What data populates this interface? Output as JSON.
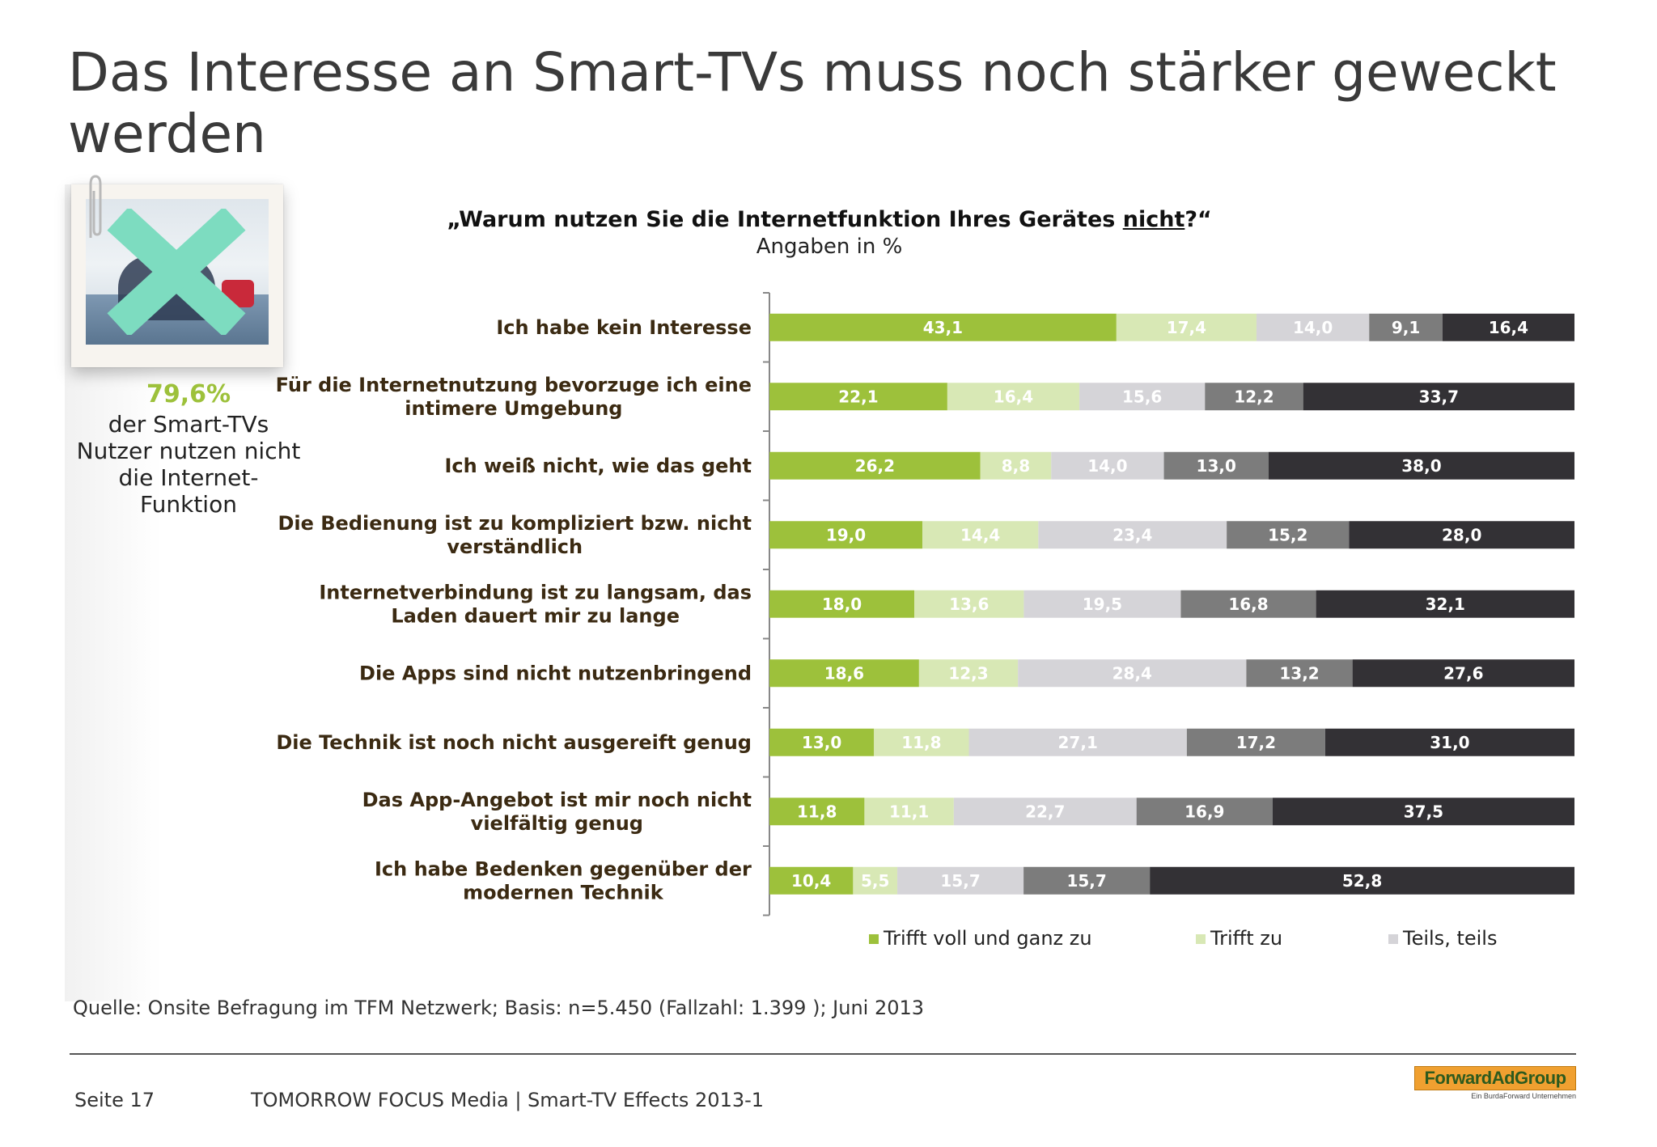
{
  "title": "Das Interesse an Smart-TVs muss noch stärker geweckt werden",
  "callout": {
    "value": "79,6%",
    "text": "der Smart-TVs Nutzer nutzen nicht die Internet-Funktion"
  },
  "chart_data": {
    "type": "bar",
    "orientation": "horizontal",
    "stacked": true,
    "title_parts": [
      "„Warum nutzen Sie die Internetfunktion Ihres Gerätes ",
      "nicht",
      "?“"
    ],
    "subtitle": "Angaben in %",
    "categories": [
      "Ich habe kein Interesse",
      "Für die Internetnutzung bevorzuge ich eine intimere Umgebung",
      "Ich weiß nicht, wie das geht",
      "Die Bedienung ist zu kompliziert bzw. nicht verständlich",
      "Internetverbindung ist zu langsam, das Laden dauert mir zu lange",
      "Die Apps sind nicht nutzenbringend",
      "Die Technik ist noch nicht ausgereift genug",
      "Das App-Angebot ist mir noch nicht vielfältig genug",
      "Ich habe Bedenken gegenüber der modernen Technik"
    ],
    "category_label_lines": [
      [
        "Ich habe kein Interesse"
      ],
      [
        "Für die Internetnutzung bevorzuge ich eine",
        "intimere Umgebung"
      ],
      [
        "Ich weiß nicht, wie das geht"
      ],
      [
        "Die Bedienung ist zu kompliziert bzw. nicht",
        "verständlich"
      ],
      [
        "Internetverbindung ist zu langsam, das",
        "Laden dauert mir zu lange"
      ],
      [
        "Die Apps sind nicht nutzenbringend"
      ],
      [
        "Die Technik ist noch nicht ausgereift genug"
      ],
      [
        "Das App-Angebot ist mir noch nicht",
        "vielfältig genug"
      ],
      [
        "Ich habe Bedenken gegenüber der",
        "modernen Technik"
      ]
    ],
    "series": [
      {
        "name": "Trifft voll und ganz zu",
        "color": "#9dc13b",
        "label_color": "#ffffff",
        "values": [
          43.1,
          22.1,
          26.2,
          19.0,
          18.0,
          18.6,
          13.0,
          11.8,
          10.4
        ],
        "labels": [
          "43,1",
          "22,1",
          "26,2",
          "19,0",
          "18,0",
          "18,6",
          "13,0",
          "11,8",
          "10,4"
        ]
      },
      {
        "name": "Trifft zu",
        "color": "#d8e8b5",
        "label_color": "#ffffff",
        "values": [
          17.4,
          16.4,
          8.8,
          14.4,
          13.6,
          12.3,
          11.8,
          11.1,
          5.5
        ],
        "labels": [
          "17,4",
          "16,4",
          "8,8",
          "14,4",
          "13,6",
          "12,3",
          "11,8",
          "11,1",
          "5,5"
        ]
      },
      {
        "name": "Teils, teils",
        "color": "#d5d4d8",
        "label_color": "#ffffff",
        "values": [
          14.0,
          15.6,
          14.0,
          23.4,
          19.5,
          28.4,
          27.1,
          22.7,
          15.7
        ],
        "labels": [
          "14,0",
          "15,6",
          "14,0",
          "23,4",
          "19,5",
          "28,4",
          "27,1",
          "22,7",
          "15,7"
        ]
      },
      {
        "color": "#7c7c7c",
        "label_color": "#ffffff",
        "values": [
          9.1,
          12.2,
          13.0,
          15.2,
          16.8,
          13.2,
          17.2,
          16.9,
          15.7
        ],
        "labels": [
          "9,1",
          "12,2",
          "13,0",
          "15,2",
          "16,8",
          "13,2",
          "17,2",
          "16,9",
          "15,7"
        ]
      },
      {
        "color": "#333135",
        "label_color": "#ffffff",
        "values": [
          16.4,
          33.7,
          38.0,
          28.0,
          32.1,
          27.6,
          31.0,
          37.5,
          52.8
        ],
        "labels": [
          "16,4",
          "33,7",
          "38,0",
          "28,0",
          "32,1",
          "27,6",
          "31,0",
          "37,5",
          "52,8"
        ]
      }
    ],
    "xlim": [
      0,
      100
    ],
    "legend_position": "bottom"
  },
  "legend": {
    "items": [
      {
        "label": "Trifft voll und ganz zu",
        "color": "#9dc13b"
      },
      {
        "label": "Trifft zu",
        "color": "#d8e8b5"
      },
      {
        "label": "Teils, teils",
        "color": "#d5d4d8"
      }
    ]
  },
  "source": "Quelle: Onsite Befragung im TFM Netzwerk; Basis: n=5.450 (Fallzahl: 1.399 ); Juni 2013",
  "footer": {
    "page": "Seite 17",
    "text": "TOMORROW FOCUS Media  |  Smart-TV Effects 2013-1"
  },
  "logo": {
    "main": "ForwardAdGroup",
    "sub": "Ein BurdaForward Unternehmen"
  },
  "icons": {
    "cross": "x-cross-icon",
    "paperclip": "paperclip-icon"
  }
}
